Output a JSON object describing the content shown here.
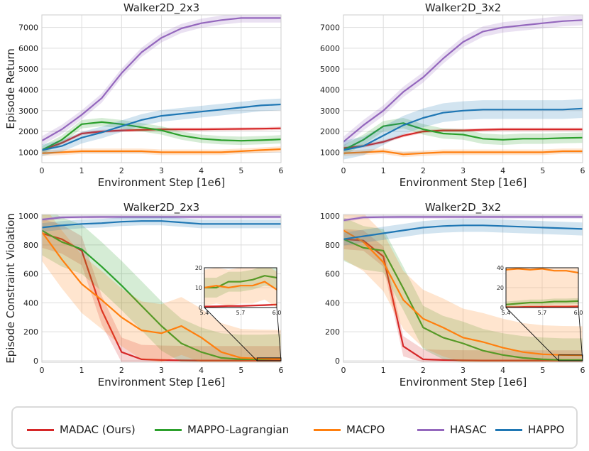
{
  "series_meta": [
    {
      "key": "madac",
      "name": "MADAC (Ours)",
      "color": "#d62728"
    },
    {
      "key": "mappo",
      "name": "MAPPO-Lagrangian",
      "color": "#2ca02c"
    },
    {
      "key": "macpo",
      "name": "MACPO",
      "color": "#ff7f0e"
    },
    {
      "key": "hasac",
      "name": "HASAC",
      "color": "#9467bd"
    },
    {
      "key": "happo",
      "name": "HAPPO",
      "color": "#1f77b4"
    }
  ],
  "chart_data": [
    {
      "type": "line",
      "title": "Walker2D_2x3",
      "xlabel": "Environment Step [1e6]",
      "ylabel": "Episode Return",
      "xlim": [
        0,
        6
      ],
      "ylim": [
        500,
        7600
      ],
      "xticks": [
        0,
        1,
        2,
        3,
        4,
        5,
        6
      ],
      "yticks": [
        1000,
        2000,
        3000,
        4000,
        5000,
        6000,
        7000
      ],
      "x": [
        0,
        0.5,
        1,
        1.5,
        2,
        2.5,
        3,
        3.5,
        4,
        4.5,
        5,
        5.5,
        6
      ],
      "series": [
        {
          "name": "MADAC (Ours)",
          "values": [
            1100,
            1450,
            1900,
            2000,
            2050,
            2070,
            2100,
            2100,
            2100,
            2110,
            2120,
            2130,
            2150
          ],
          "band": 80
        },
        {
          "name": "MAPPO-Lagrangian",
          "values": [
            1100,
            1600,
            2350,
            2450,
            2350,
            2200,
            2050,
            1800,
            1650,
            1580,
            1550,
            1580,
            1620
          ],
          "band": 200
        },
        {
          "name": "MACPO",
          "values": [
            950,
            1000,
            1050,
            1050,
            1050,
            1050,
            1000,
            1000,
            1000,
            1000,
            1050,
            1100,
            1150
          ],
          "band": 130
        },
        {
          "name": "HASAC",
          "values": [
            1550,
            2100,
            2800,
            3600,
            4800,
            5800,
            6500,
            6950,
            7200,
            7350,
            7450,
            7450,
            7450
          ],
          "band": 220
        },
        {
          "name": "HAPPO",
          "values": [
            1100,
            1300,
            1700,
            1950,
            2250,
            2550,
            2750,
            2850,
            2950,
            3050,
            3150,
            3250,
            3300
          ],
          "band": 280
        }
      ]
    },
    {
      "type": "line",
      "title": "Walker2D_3x2",
      "xlabel": "Environment Step [1e6]",
      "ylabel": "",
      "xlim": [
        0,
        6
      ],
      "ylim": [
        500,
        7600
      ],
      "xticks": [
        0,
        1,
        2,
        3,
        4,
        5,
        6
      ],
      "yticks": [
        1000,
        2000,
        3000,
        4000,
        5000,
        6000,
        7000
      ],
      "x": [
        0,
        0.5,
        1,
        1.5,
        2,
        2.5,
        3,
        3.5,
        4,
        4.5,
        5,
        5.5,
        6
      ],
      "series": [
        {
          "name": "MADAC (Ours)",
          "values": [
            1200,
            1300,
            1500,
            1800,
            2000,
            2050,
            2050,
            2080,
            2100,
            2100,
            2100,
            2100,
            2100
          ],
          "band": 80
        },
        {
          "name": "MAPPO-Lagrangian",
          "values": [
            1100,
            1600,
            2250,
            2400,
            2100,
            1900,
            1850,
            1650,
            1600,
            1650,
            1650,
            1680,
            1700
          ],
          "band": 250
        },
        {
          "name": "MACPO",
          "values": [
            950,
            1000,
            1050,
            900,
            950,
            1000,
            1000,
            1000,
            1000,
            1000,
            1000,
            1050,
            1050
          ],
          "band": 130
        },
        {
          "name": "HASAC",
          "values": [
            1500,
            2300,
            3000,
            3900,
            4600,
            5500,
            6300,
            6800,
            7000,
            7100,
            7200,
            7300,
            7350
          ],
          "band": 250
        },
        {
          "name": "HAPPO",
          "values": [
            1100,
            1300,
            1800,
            2300,
            2650,
            2900,
            3000,
            3050,
            3050,
            3050,
            3050,
            3050,
            3100
          ],
          "band": 450
        }
      ]
    },
    {
      "type": "line",
      "title": "Walker2D_2x3",
      "xlabel": "Environment Step [1e6]",
      "ylabel": "Episode Constraint Violation",
      "xlim": [
        0,
        6
      ],
      "ylim": [
        -10,
        1010
      ],
      "xticks": [
        0,
        1,
        2,
        3,
        4,
        5,
        6
      ],
      "yticks": [
        0,
        200,
        400,
        600,
        800,
        1000
      ],
      "x": [
        0,
        0.5,
        1,
        1.5,
        2,
        2.5,
        3,
        3.5,
        4,
        4.5,
        5,
        5.5,
        6
      ],
      "series": [
        {
          "name": "MADAC (Ours)",
          "values": [
            880,
            840,
            760,
            350,
            60,
            10,
            5,
            3,
            2,
            2,
            2,
            2,
            2
          ],
          "band": 100
        },
        {
          "name": "MAPPO-Lagrangian",
          "values": [
            900,
            820,
            770,
            650,
            520,
            380,
            240,
            120,
            60,
            20,
            10,
            10,
            15
          ],
          "band": 170
        },
        {
          "name": "MACPO",
          "values": [
            890,
            700,
            530,
            420,
            300,
            210,
            190,
            240,
            160,
            60,
            20,
            15,
            12
          ],
          "band": 200
        },
        {
          "name": "HASAC",
          "values": [
            975,
            990,
            992,
            993,
            993,
            993,
            993,
            993,
            993,
            993,
            993,
            993,
            993
          ],
          "band": 12
        },
        {
          "name": "HAPPO",
          "values": [
            920,
            935,
            945,
            950,
            960,
            965,
            965,
            955,
            945,
            945,
            945,
            945,
            945
          ],
          "band": 30
        }
      ],
      "inset": {
        "xlim": [
          5.4,
          6.0
        ],
        "ylim": [
          0,
          20
        ],
        "xticks": [
          "5.4",
          "5.7",
          "6.0"
        ],
        "yticks": [
          0,
          10,
          20
        ],
        "x": [
          5.4,
          5.5,
          5.6,
          5.7,
          5.8,
          5.9,
          6.0
        ],
        "series": [
          {
            "name": "MADAC (Ours)",
            "values": [
              0.5,
              0.6,
              0.8,
              0.8,
              1,
              1.2,
              1.5
            ],
            "band": 0.5
          },
          {
            "name": "MAPPO-Lagrangian",
            "values": [
              10,
              10,
              13,
              13,
              14,
              16,
              15
            ],
            "band": 5
          },
          {
            "name": "MACPO",
            "values": [
              10,
              11,
              10,
              11,
              11,
              13,
              9
            ],
            "band": 9
          }
        ]
      }
    },
    {
      "type": "line",
      "title": "Walker2D_3x2",
      "xlabel": "Environment Step [1e6]",
      "ylabel": "",
      "xlim": [
        0,
        6
      ],
      "ylim": [
        -10,
        1010
      ],
      "xticks": [
        0,
        1,
        2,
        3,
        4,
        5,
        6
      ],
      "yticks": [
        0,
        200,
        400,
        600,
        800,
        1000
      ],
      "x": [
        0,
        0.5,
        1,
        1.5,
        2,
        2.5,
        3,
        3.5,
        4,
        4.5,
        5,
        5.5,
        6
      ],
      "series": [
        {
          "name": "MADAC (Ours)",
          "values": [
            840,
            830,
            720,
            100,
            10,
            5,
            3,
            2,
            2,
            2,
            2,
            2,
            2
          ],
          "band": 70
        },
        {
          "name": "MAPPO-Lagrangian",
          "values": [
            840,
            780,
            760,
            500,
            230,
            160,
            120,
            70,
            40,
            20,
            10,
            5,
            5
          ],
          "band": 150
        },
        {
          "name": "MACPO",
          "values": [
            900,
            820,
            680,
            420,
            290,
            230,
            160,
            130,
            90,
            60,
            45,
            40,
            38
          ],
          "band": 200
        },
        {
          "name": "HASAC",
          "values": [
            970,
            990,
            992,
            993,
            993,
            993,
            993,
            993,
            993,
            993,
            993,
            993,
            993
          ],
          "band": 12
        },
        {
          "name": "HAPPO",
          "values": [
            840,
            860,
            880,
            900,
            920,
            930,
            935,
            935,
            930,
            925,
            920,
            915,
            910
          ],
          "band": 45
        }
      ],
      "inset": {
        "xlim": [
          5.4,
          6.0
        ],
        "ylim": [
          0,
          40
        ],
        "xticks": [
          "5.4",
          "5.7",
          "6.0"
        ],
        "yticks": [
          0,
          20,
          40
        ],
        "x": [
          5.4,
          5.5,
          5.6,
          5.7,
          5.8,
          5.9,
          6.0
        ],
        "series": [
          {
            "name": "MADAC (Ours)",
            "values": [
              0.5,
              0.5,
              0.8,
              0.8,
              1,
              1,
              1.2
            ],
            "band": 0.5
          },
          {
            "name": "MAPPO-Lagrangian",
            "values": [
              3,
              4,
              5,
              5,
              6,
              6,
              6.5
            ],
            "band": 3
          },
          {
            "name": "MACPO",
            "values": [
              38,
              39,
              38,
              39,
              37,
              37,
              35
            ],
            "band": 38
          }
        ]
      }
    }
  ]
}
